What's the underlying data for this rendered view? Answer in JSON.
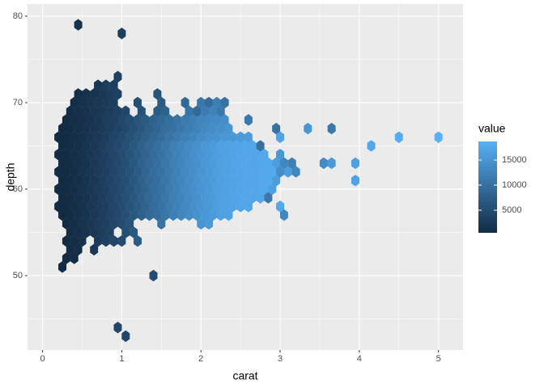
{
  "chart_data": {
    "type": "hexbin",
    "x_label": "carat",
    "y_label": "depth",
    "legend_title": "value",
    "xlim": [
      -0.19,
      5.31
    ],
    "ylim": [
      41.4,
      81.4
    ],
    "xticks": [
      0,
      1,
      2,
      3,
      4,
      5
    ],
    "yticks": [
      50,
      60,
      70,
      80
    ],
    "grid": true,
    "legend": "right",
    "color_low": "#132B43",
    "color_high": "#56B1F7",
    "legend_ticks": [
      5000,
      10000,
      15000
    ],
    "rows": [
      {
        "depth": 79,
        "carat": [
          0.45
        ],
        "values": [
          1500
        ]
      },
      {
        "depth": 78,
        "carat": [
          1
        ],
        "values": [
          3000
        ]
      },
      {
        "depth": 73,
        "carat": [
          0.95
        ],
        "values": [
          3500
        ]
      },
      {
        "depth": 72,
        "carat": [
          0.7,
          0.8,
          0.9
        ],
        "values": [
          2000,
          2800,
          3200
        ]
      },
      {
        "depth": 71,
        "carat": [
          0.45,
          0.55,
          0.65,
          0.75,
          0.85,
          0.95,
          1.45
        ],
        "values": [
          1000,
          1400,
          1800,
          2300,
          2800,
          3500,
          6000
        ]
      },
      {
        "depth": 70,
        "carat": [
          0.4,
          0.5,
          0.6,
          0.7,
          0.8,
          0.9,
          1.2,
          1.5,
          1.8,
          2,
          2.1,
          2.2,
          2.3
        ],
        "values": [
          900,
          1300,
          1800,
          2200,
          2700,
          3200,
          5500,
          7000,
          9000,
          11000,
          9500,
          12000,
          10000
        ]
      },
      {
        "depth": 69,
        "carat": [
          0.35,
          0.45,
          0.55,
          0.65,
          0.75,
          0.85,
          0.95,
          1.05,
          1.25,
          1.45,
          1.55,
          1.85,
          1.95,
          2.05,
          2.15,
          2.25
        ],
        "values": [
          700,
          1000,
          1400,
          1900,
          2400,
          2900,
          3500,
          4200,
          5800,
          7200,
          8000,
          10500,
          9000,
          11500,
          12500,
          11000
        ]
      },
      {
        "depth": 68,
        "carat": [
          0.3,
          0.4,
          0.5,
          0.6,
          0.7,
          0.8,
          0.9,
          1,
          1.1,
          1.2,
          1.3,
          1.4,
          1.5,
          1.6,
          1.7,
          1.8,
          1.9,
          2,
          2.1,
          2.2,
          2.3,
          2.6
        ],
        "values": [
          600,
          850,
          1200,
          1700,
          2300,
          2900,
          3500,
          4300,
          5200,
          6200,
          7000,
          8000,
          8800,
          9700,
          10500,
          11300,
          12000,
          12700,
          13200,
          13600,
          14000,
          11000
        ]
      },
      {
        "depth": 67,
        "carat": [
          0.25,
          0.35,
          0.45,
          0.55,
          0.65,
          0.75,
          0.85,
          0.95,
          1.05,
          1.15,
          1.25,
          1.35,
          1.45,
          1.55,
          1.65,
          1.75,
          1.85,
          1.95,
          2.05,
          2.15,
          2.25,
          2.35,
          2.95,
          3.35,
          3.65
        ],
        "values": [
          550,
          700,
          1000,
          1400,
          1900,
          2500,
          3100,
          3800,
          4600,
          5500,
          6500,
          7500,
          8500,
          9400,
          10200,
          11000,
          11800,
          12500,
          13200,
          13800,
          14300,
          14700,
          10000,
          15000,
          11000
        ]
      },
      {
        "depth": 66,
        "carat": [
          0.2,
          0.3,
          0.4,
          0.5,
          0.6,
          0.7,
          0.8,
          0.9,
          1,
          1.1,
          1.2,
          1.3,
          1.4,
          1.5,
          1.6,
          1.7,
          1.8,
          1.9,
          2,
          2.1,
          2.2,
          2.3,
          2.4,
          2.5,
          2.6,
          3,
          4.5,
          5
        ],
        "values": [
          500,
          620,
          880,
          1250,
          1750,
          2400,
          3100,
          3900,
          4700,
          5600,
          6600,
          7600,
          8600,
          9600,
          10500,
          11400,
          12200,
          13000,
          13700,
          14300,
          14800,
          15200,
          15500,
          15700,
          15900,
          17000,
          18200,
          18700
        ]
      },
      {
        "depth": 65,
        "carat": [
          0.25,
          0.35,
          0.45,
          0.55,
          0.65,
          0.75,
          0.85,
          0.95,
          1.05,
          1.15,
          1.25,
          1.35,
          1.45,
          1.55,
          1.65,
          1.75,
          1.85,
          1.95,
          2.05,
          2.15,
          2.25,
          2.35,
          2.45,
          2.55,
          2.65,
          2.75,
          4.15
        ],
        "values": [
          550,
          750,
          1100,
          1700,
          2300,
          3000,
          3800,
          4600,
          5500,
          6600,
          7800,
          8900,
          9800,
          10800,
          11800,
          12800,
          13700,
          14500,
          15200,
          15800,
          16400,
          16800,
          17100,
          17300,
          17400,
          10000,
          17500
        ]
      },
      {
        "depth": 64,
        "carat": [
          0.2,
          0.3,
          0.4,
          0.5,
          0.6,
          0.7,
          0.8,
          0.9,
          1,
          1.1,
          1.2,
          1.3,
          1.4,
          1.5,
          1.6,
          1.7,
          1.8,
          1.9,
          2,
          2.1,
          2.2,
          2.3,
          2.4,
          2.5,
          2.6,
          2.7,
          2.8,
          3
        ],
        "values": [
          500,
          600,
          900,
          1400,
          2000,
          2700,
          3400,
          4200,
          5000,
          6000,
          7200,
          8300,
          9400,
          10300,
          11300,
          12300,
          13300,
          14100,
          14900,
          15500,
          16100,
          16600,
          17000,
          17200,
          17300,
          17400,
          17500,
          15000
        ]
      },
      {
        "depth": 63,
        "carat": [
          0.25,
          0.35,
          0.45,
          0.55,
          0.65,
          0.75,
          0.85,
          0.95,
          1.05,
          1.15,
          1.25,
          1.35,
          1.45,
          1.55,
          1.65,
          1.75,
          1.85,
          1.95,
          2.05,
          2.15,
          2.25,
          2.35,
          2.45,
          2.55,
          2.65,
          2.75,
          2.85,
          2.95,
          3.05,
          3.15,
          3.55,
          3.65,
          3.95
        ],
        "values": [
          550,
          750,
          1100,
          1700,
          2300,
          3000,
          3800,
          4600,
          5500,
          6600,
          7800,
          8900,
          9800,
          10800,
          11800,
          12800,
          13700,
          14500,
          15200,
          15800,
          16400,
          16800,
          17100,
          17300,
          17400,
          17500,
          17600,
          16000,
          13000,
          12000,
          13500,
          15500,
          16500
        ]
      },
      {
        "depth": 62,
        "carat": [
          0.2,
          0.3,
          0.4,
          0.5,
          0.6,
          0.7,
          0.8,
          0.9,
          1,
          1.1,
          1.2,
          1.3,
          1.4,
          1.5,
          1.6,
          1.7,
          1.8,
          1.9,
          2,
          2.1,
          2.2,
          2.3,
          2.4,
          2.5,
          2.6,
          2.7,
          2.8,
          2.9,
          3,
          3.1,
          3.2
        ],
        "values": [
          500,
          600,
          900,
          1400,
          2000,
          2700,
          3400,
          4200,
          5000,
          6000,
          7200,
          8300,
          9400,
          10300,
          11300,
          12300,
          13300,
          14100,
          14900,
          15500,
          16100,
          16600,
          17000,
          17200,
          17300,
          17400,
          17500,
          17600,
          14000,
          16000,
          13000
        ]
      },
      {
        "depth": 61,
        "carat": [
          0.25,
          0.35,
          0.45,
          0.55,
          0.65,
          0.75,
          0.85,
          0.95,
          1.05,
          1.15,
          1.25,
          1.35,
          1.45,
          1.55,
          1.65,
          1.75,
          1.85,
          1.95,
          2.05,
          2.15,
          2.25,
          2.35,
          2.45,
          2.55,
          2.65,
          2.75,
          2.85,
          2.95,
          3.95
        ],
        "values": [
          550,
          750,
          1100,
          1700,
          2300,
          3000,
          3800,
          4600,
          5500,
          6600,
          7800,
          8900,
          9800,
          10800,
          11800,
          12800,
          13700,
          14500,
          15200,
          15800,
          16400,
          16800,
          17100,
          17300,
          17400,
          17500,
          17600,
          16000,
          17000
        ]
      },
      {
        "depth": 60,
        "carat": [
          0.2,
          0.3,
          0.4,
          0.5,
          0.6,
          0.7,
          0.8,
          0.9,
          1,
          1.1,
          1.2,
          1.3,
          1.4,
          1.5,
          1.6,
          1.7,
          1.8,
          1.9,
          2,
          2.1,
          2.2,
          2.3,
          2.4,
          2.5,
          2.6,
          2.7,
          2.8,
          2.9
        ],
        "values": [
          500,
          600,
          900,
          1400,
          2000,
          2700,
          3400,
          4200,
          5000,
          6000,
          7200,
          8300,
          9400,
          10300,
          11300,
          12300,
          13300,
          14100,
          14900,
          15500,
          16100,
          16600,
          17000,
          17200,
          17300,
          17400,
          17500,
          16500
        ]
      },
      {
        "depth": 59,
        "carat": [
          0.25,
          0.35,
          0.45,
          0.55,
          0.65,
          0.75,
          0.85,
          0.95,
          1.05,
          1.15,
          1.25,
          1.35,
          1.45,
          1.55,
          1.65,
          1.75,
          1.85,
          1.95,
          2.05,
          2.15,
          2.25,
          2.35,
          2.45,
          2.55,
          2.65,
          2.75,
          2.85
        ],
        "values": [
          550,
          750,
          1100,
          1700,
          2300,
          3000,
          3800,
          4600,
          5500,
          6600,
          7800,
          8900,
          9800,
          10800,
          11800,
          12800,
          13700,
          14500,
          15200,
          15800,
          16400,
          16800,
          17100,
          17300,
          17400,
          17500,
          11000
        ]
      },
      {
        "depth": 58,
        "carat": [
          0.2,
          0.3,
          0.4,
          0.5,
          0.6,
          0.7,
          0.8,
          0.9,
          1,
          1.1,
          1.2,
          1.3,
          1.4,
          1.5,
          1.6,
          1.7,
          1.8,
          1.9,
          2,
          2.1,
          2.2,
          2.3,
          2.4,
          2.5,
          2.6,
          3
        ],
        "values": [
          500,
          600,
          900,
          1400,
          2000,
          2700,
          3400,
          4200,
          5000,
          6000,
          7200,
          8300,
          9400,
          10300,
          11300,
          12300,
          13300,
          14100,
          14900,
          15500,
          16100,
          16600,
          17000,
          17200,
          17300,
          17500
        ]
      },
      {
        "depth": 57,
        "carat": [
          0.25,
          0.35,
          0.45,
          0.55,
          0.65,
          0.75,
          0.85,
          0.95,
          1.05,
          1.15,
          1.25,
          1.35,
          1.45,
          1.55,
          1.65,
          1.75,
          1.85,
          1.95,
          2.05,
          2.15,
          2.25,
          2.35,
          3.05
        ],
        "values": [
          550,
          750,
          1100,
          1700,
          2300,
          3000,
          3800,
          4600,
          5500,
          6600,
          7800,
          8900,
          9800,
          10800,
          11800,
          12800,
          13700,
          14500,
          15200,
          15800,
          16400,
          16800,
          13000
        ]
      },
      {
        "depth": 56,
        "carat": [
          0.3,
          0.4,
          0.5,
          0.6,
          0.7,
          0.8,
          0.9,
          1,
          1.1,
          1.5,
          2,
          2.1
        ],
        "values": [
          600,
          900,
          1400,
          2000,
          2700,
          3400,
          4200,
          5000,
          6000,
          10300,
          14900,
          15500
        ]
      },
      {
        "depth": 55,
        "carat": [
          0.35,
          0.45,
          0.55,
          0.65,
          0.75,
          0.85,
          1.05,
          1.15
        ],
        "values": [
          750,
          1100,
          1700,
          2300,
          3000,
          3800,
          5500,
          6600
        ]
      },
      {
        "depth": 54,
        "carat": [
          0.3,
          0.4,
          0.5,
          0.7,
          0.8,
          0.9,
          1,
          1.2
        ],
        "values": [
          600,
          900,
          1400,
          2700,
          3400,
          4200,
          5000,
          7200
        ]
      },
      {
        "depth": 53,
        "carat": [
          0.35,
          0.45,
          0.65
        ],
        "values": [
          750,
          1100,
          2300
        ]
      },
      {
        "depth": 52,
        "carat": [
          0.3,
          0.4
        ],
        "values": [
          600,
          900
        ]
      },
      {
        "depth": 51,
        "carat": [
          0.25
        ],
        "values": [
          550
        ]
      },
      {
        "depth": 50,
        "carat": [
          1.4
        ],
        "values": [
          5000
        ]
      },
      {
        "depth": 44,
        "carat": [
          0.95
        ],
        "values": [
          4000
        ]
      },
      {
        "depth": 43,
        "carat": [
          1.05
        ],
        "values": [
          4200
        ]
      }
    ]
  }
}
